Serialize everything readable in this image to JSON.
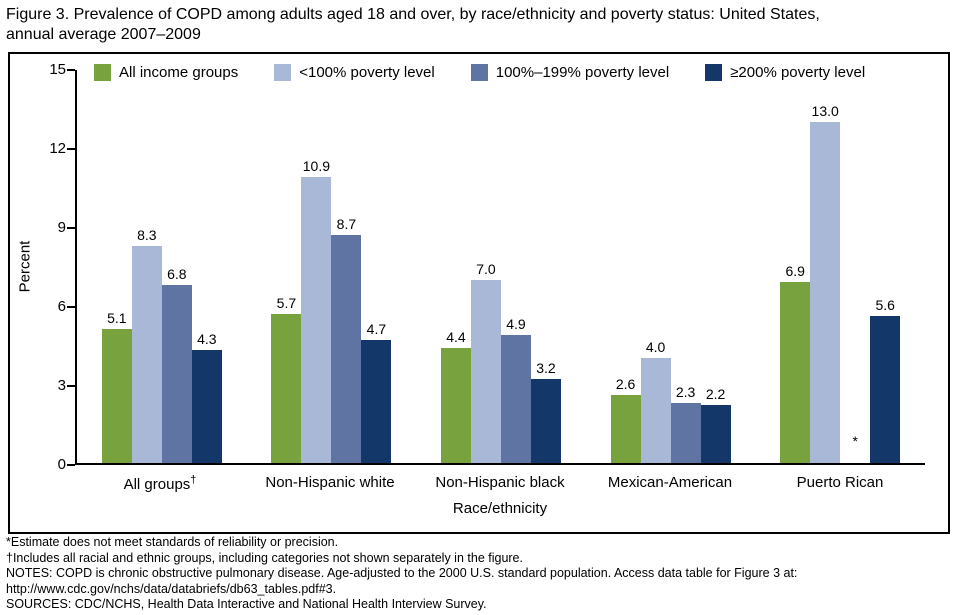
{
  "header": {
    "title_lines": [
      "Figure 3. Prevalence of COPD among adults aged 18 and over, by race/ethnicity and poverty status: United States,",
      "annual average 2007–2009"
    ]
  },
  "chart_data": {
    "type": "bar",
    "title": "Figure 3. Prevalence of COPD among adults aged 18 and over, by race/ethnicity and poverty status: United States, annual average 2007–2009",
    "xlabel": "Race/ethnicity",
    "ylabel": "Percent",
    "ylim": [
      0,
      15
    ],
    "yticks": [
      0,
      3,
      6,
      9,
      12,
      15
    ],
    "grid": false,
    "legend_position": "top",
    "categories": [
      "All groups†",
      "Non-Hispanic white",
      "Non-Hispanic black",
      "Mexican-American",
      "Puerto Rican"
    ],
    "series": [
      {
        "name": "All income groups",
        "color": "#77a23e",
        "values": [
          5.1,
          5.7,
          4.4,
          2.6,
          6.9
        ]
      },
      {
        "name": "<100% poverty level",
        "color": "#aab8d8",
        "values": [
          8.3,
          10.9,
          7.0,
          4.0,
          13.0
        ]
      },
      {
        "name": "100%–199% poverty level",
        "color": "#5f74a2",
        "values": [
          6.8,
          8.7,
          4.9,
          2.3,
          null
        ],
        "suppressed_marker": "*"
      },
      {
        "name": "≥200% poverty level",
        "color": "#123768",
        "values": [
          4.3,
          4.7,
          3.2,
          2.2,
          5.6
        ]
      }
    ]
  },
  "footnotes": [
    "*Estimate does not meet standards of reliability or precision.",
    "†Includes all racial and ethnic groups, including categories not shown separately in the figure.",
    "NOTES: COPD is chronic obstructive pulmonary disease. Age-adjusted to the 2000 U.S. standard population. Access data table for Figure 3 at:",
    "http://www.cdc.gov/nchs/data/databriefs/db63_tables.pdf#3.",
    "SOURCES: CDC/NCHS, Health Data Interactive and National Health Interview Survey."
  ]
}
